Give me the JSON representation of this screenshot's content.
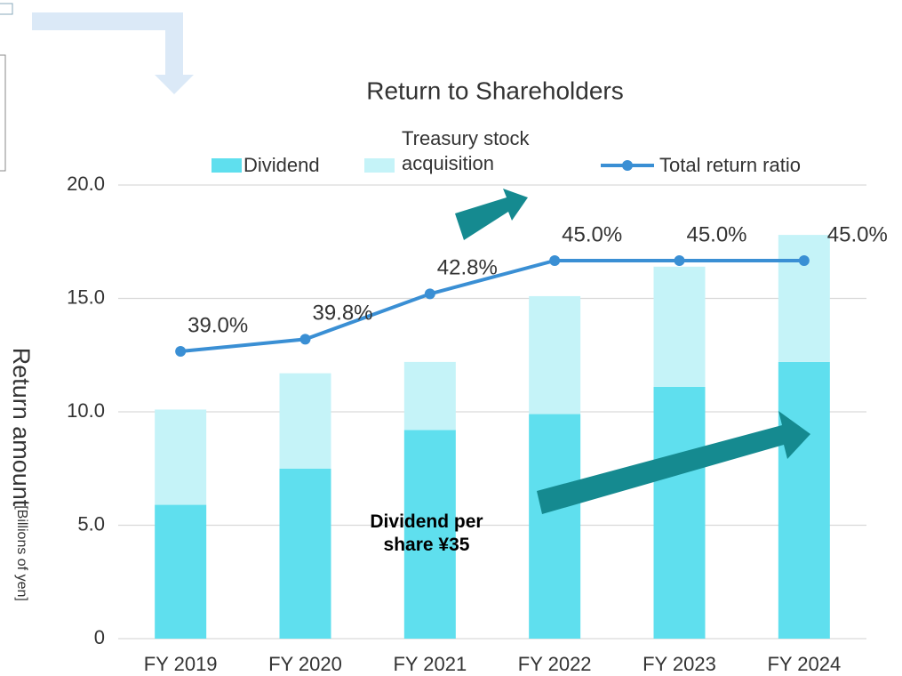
{
  "chart_data": {
    "type": "bar",
    "title": "Return to Shareholders",
    "ylabel": "Return amount",
    "yunit": "[Billions of yen]",
    "annotation": "Dividend per share ¥35",
    "categories": [
      "FY 2019",
      "FY 2020",
      "FY 2021",
      "FY 2022",
      "FY 2023",
      "FY 2024"
    ],
    "stacked": true,
    "series": [
      {
        "name": "Dividend",
        "color": "#5fdfee",
        "values": [
          5.9,
          7.5,
          9.2,
          9.9,
          11.1,
          12.2
        ]
      },
      {
        "name": "Treasury stock acquisition",
        "color": "#c5f3f8",
        "values": [
          4.2,
          4.2,
          3.0,
          5.2,
          5.3,
          5.6
        ]
      },
      {
        "name": "Total return ratio",
        "type": "line",
        "axis": "y2",
        "color": "#3a8fd4",
        "values": [
          39.0,
          39.8,
          42.8,
          45.0,
          45.0,
          45.0
        ],
        "value_labels": [
          "39.0%",
          "39.8%",
          "42.8%",
          "45.0%",
          "45.0%",
          "45.0%"
        ]
      }
    ],
    "ylim": [
      0,
      20
    ],
    "yticks": [
      0,
      {
        "value": 5,
        "label": "5.0"
      },
      {
        "value": 10,
        "label": "10.0"
      },
      {
        "value": 15,
        "label": "15.0"
      },
      {
        "value": 20,
        "label": "20.0"
      }
    ],
    "y2lim": [
      20,
      50
    ],
    "grid": true
  }
}
